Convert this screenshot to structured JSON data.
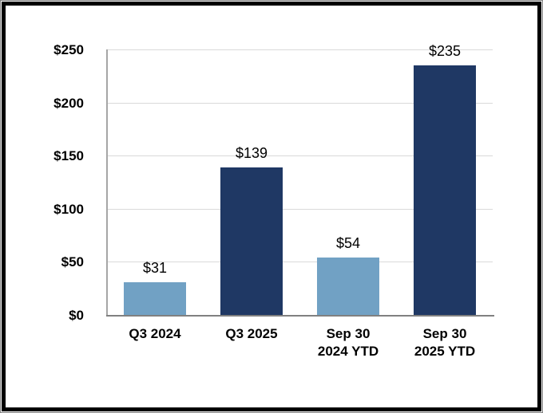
{
  "chart_data": {
    "type": "bar",
    "title": "",
    "xlabel": "",
    "ylabel": "",
    "categories": [
      "Q3 2024",
      "Q3 2025",
      "Sep 30\n2024 YTD",
      "Sep 30\n2025 YTD"
    ],
    "values": [
      31,
      139,
      54,
      235
    ],
    "data_labels": [
      "$31",
      "$139",
      "$54",
      "$235"
    ],
    "bar_colors": [
      "#71A1C4",
      "#1F3864",
      "#71A1C4",
      "#1F3864"
    ],
    "y_ticks": [
      {
        "value": 0,
        "label": "$0"
      },
      {
        "value": 50,
        "label": "$50"
      },
      {
        "value": 100,
        "label": "$100"
      },
      {
        "value": 150,
        "label": "$150"
      },
      {
        "value": 200,
        "label": "$200"
      },
      {
        "value": 250,
        "label": "$250"
      }
    ],
    "ylim": [
      0,
      250
    ],
    "grid": true,
    "legend": false,
    "colors": {
      "light_blue_series": "#71A1C4",
      "dark_navy_series": "#1F3864",
      "gridline": "#D9D9D9",
      "axis_line": "#A6A6A6",
      "baseline": "#808080",
      "text": "#000000",
      "frame_border": "#000000",
      "background": "#FFFFFF"
    }
  }
}
